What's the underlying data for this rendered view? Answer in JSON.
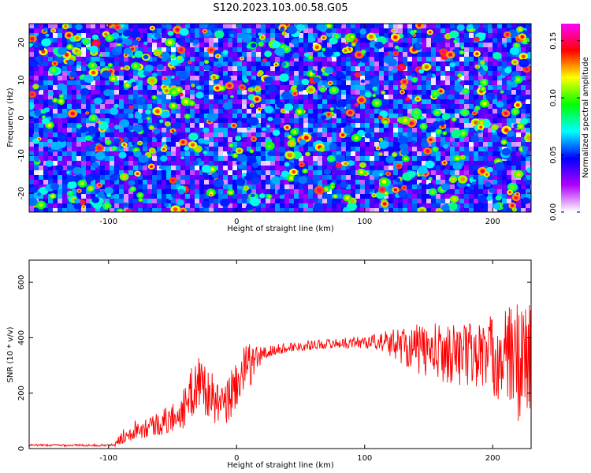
{
  "title": "S120.2023.103.00.58.G05",
  "chart_data": [
    {
      "type": "heatmap",
      "xlabel": "Height of straight line (km)",
      "ylabel": "Frequency (Hz)",
      "xlim": [
        -162,
        230
      ],
      "ylim": [
        -25,
        25
      ],
      "xticks": [
        -100,
        0,
        100,
        200
      ],
      "yticks": [
        -20,
        -10,
        0,
        10,
        20
      ],
      "colorbar": {
        "label": "Normalized spectral amplitude",
        "range": [
          0,
          0.165
        ],
        "ticks": [
          "0.00",
          "0.05",
          "0.10",
          "0.15"
        ],
        "colors": [
          "#ffffff",
          "#b000ff",
          "#0000ff",
          "#00ffff",
          "#00ff00",
          "#ffff00",
          "#ff0000",
          "#ff00ff"
        ]
      }
    },
    {
      "type": "line",
      "xlabel": "Height of straight line (km)",
      "ylabel": "SNR (10 * v/v)",
      "xlim": [
        -162,
        230
      ],
      "ylim": [
        0,
        680
      ],
      "xticks": [
        -100,
        0,
        100,
        200
      ],
      "yticks": [
        0,
        200,
        400,
        600
      ],
      "line_color": "#ff0000",
      "series": [
        {
          "x": [
            -162,
            -140,
            -120,
            -100,
            -95,
            -90,
            -80,
            -70,
            -60,
            -50,
            -40,
            -35,
            -30,
            -25,
            -20,
            -15,
            -10,
            -5,
            0,
            5,
            10,
            15,
            20,
            30,
            40,
            50,
            60,
            70,
            80,
            90,
            100,
            110,
            120,
            130,
            140,
            150,
            160,
            170,
            180,
            190,
            200,
            210,
            220,
            230
          ],
          "values": [
            12,
            12,
            12,
            12,
            13,
            40,
            70,
            80,
            90,
            110,
            150,
            200,
            250,
            220,
            190,
            160,
            140,
            190,
            240,
            270,
            300,
            320,
            340,
            355,
            365,
            370,
            375,
            378,
            380,
            382,
            385,
            385,
            380,
            375,
            360,
            350,
            345,
            345,
            340,
            338,
            335,
            330,
            320,
            310
          ],
          "spread": [
            4,
            4,
            4,
            4,
            5,
            25,
            35,
            40,
            45,
            55,
            75,
            95,
            110,
            100,
            90,
            80,
            80,
            90,
            100,
            95,
            80,
            60,
            30,
            20,
            18,
            18,
            18,
            18,
            18,
            20,
            25,
            30,
            50,
            70,
            90,
            100,
            110,
            110,
            120,
            130,
            150,
            180,
            220,
            250
          ]
        }
      ]
    }
  ]
}
